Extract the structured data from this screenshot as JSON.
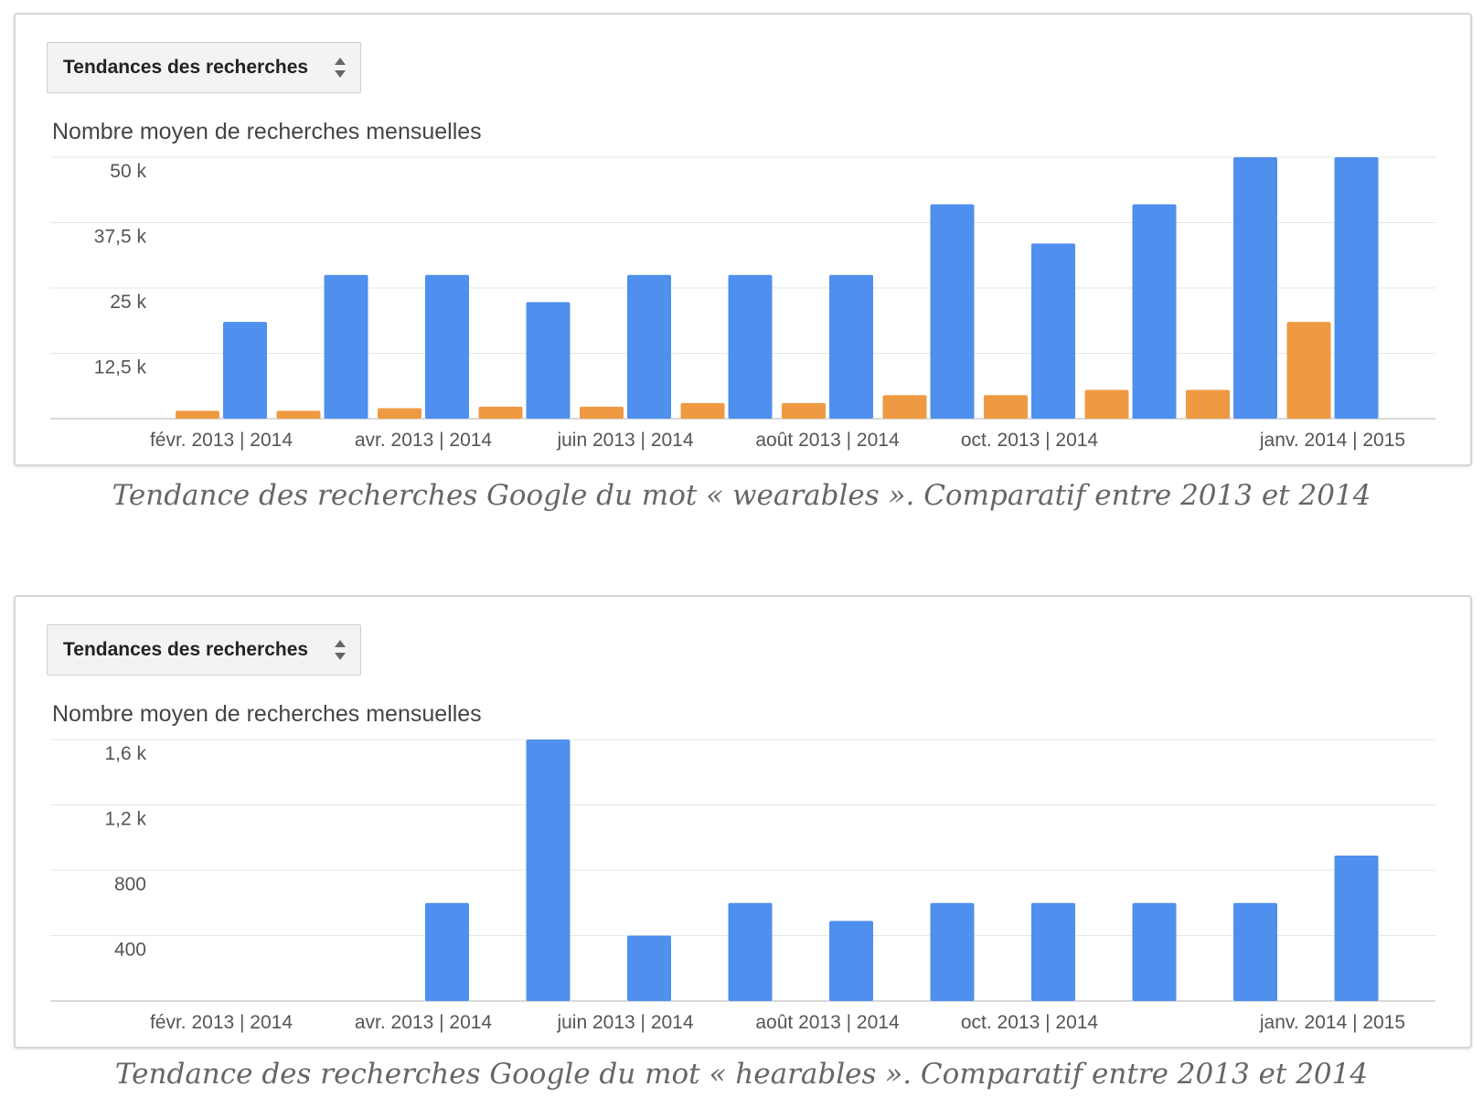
{
  "panels": [
    {
      "dropdown_label": "Tendances des recherches",
      "chart_title": "Nombre moyen de recherches mensuelles",
      "caption": "Tendance des recherches Google du mot « wearables ». Comparatif entre 2013 et 2014"
    },
    {
      "dropdown_label": "Tendances des recherches",
      "chart_title": "Nombre moyen de recherches mensuelles",
      "caption": "Tendance des recherches Google du mot « hearables ». Comparatif entre 2013 et 2014"
    }
  ],
  "colors": {
    "series_2013": "#ef9a42",
    "series_2014": "#4f8fee"
  },
  "chart_data": [
    {
      "type": "bar",
      "title": "Nombre moyen de recherches mensuelles",
      "x_tick_labels": [
        "févr. 2013 | 2014",
        "avr. 2013 | 2014",
        "juin 2013 | 2014",
        "août 2013 | 2014",
        "oct. 2013 | 2014",
        "janv. 2014 | 2015"
      ],
      "y_tick_labels": [
        "50 k",
        "37,5 k",
        "25 k",
        "12,5 k"
      ],
      "y_ticks": [
        50000,
        37500,
        25000,
        12500
      ],
      "ylim": [
        0,
        50000
      ],
      "grid": true,
      "series": [
        {
          "values": [
            1500,
            1500,
            2000,
            2300,
            2300,
            3000,
            3000,
            4500,
            4500,
            5500,
            5500,
            18500
          ]
        },
        {
          "values": [
            18500,
            27500,
            27500,
            22300,
            27500,
            27500,
            27500,
            41000,
            33500,
            41000,
            50000,
            50000
          ]
        }
      ]
    },
    {
      "type": "bar",
      "title": "Nombre moyen de recherches mensuelles",
      "x_tick_labels": [
        "févr. 2013 | 2014",
        "avr. 2013 | 2014",
        "juin 2013 | 2014",
        "août 2013 | 2014",
        "oct. 2013 | 2014",
        "janv. 2014 | 2015"
      ],
      "y_tick_labels": [
        "1,6 k",
        "1,2 k",
        "800",
        "400"
      ],
      "y_ticks": [
        1600,
        1200,
        800,
        400
      ],
      "ylim": [
        0,
        1600
      ],
      "grid": true,
      "series": [
        {
          "values": [
            0,
            0,
            0,
            0,
            0,
            0,
            0,
            0,
            0,
            0,
            0,
            0
          ]
        },
        {
          "values": [
            0,
            0,
            600,
            1600,
            400,
            600,
            490,
            600,
            600,
            600,
            600,
            890
          ]
        }
      ]
    }
  ]
}
